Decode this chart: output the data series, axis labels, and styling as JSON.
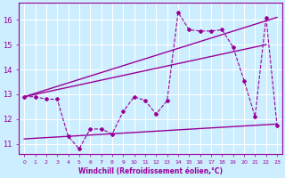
{
  "background_color": "#cceeff",
  "grid_color": "#ffffff",
  "line_color": "#990099",
  "xlabel": "Windchill (Refroidissement éolien,°C)",
  "xlim": [
    -0.5,
    23.5
  ],
  "ylim": [
    10.6,
    16.7
  ],
  "yticks": [
    11,
    12,
    13,
    14,
    15,
    16
  ],
  "xticks": [
    0,
    1,
    2,
    3,
    4,
    5,
    6,
    7,
    8,
    9,
    10,
    11,
    12,
    13,
    14,
    15,
    16,
    17,
    18,
    19,
    20,
    21,
    22,
    23
  ],
  "dashed_x": [
    0,
    1,
    2,
    3,
    4,
    5,
    6,
    7,
    8,
    9,
    10,
    11,
    12,
    13,
    14,
    15,
    16,
    17,
    18,
    19,
    20,
    21,
    22,
    23
  ],
  "dashed_y": [
    12.9,
    12.9,
    12.8,
    12.8,
    11.3,
    10.8,
    11.6,
    11.6,
    11.4,
    12.3,
    12.9,
    12.75,
    12.2,
    12.75,
    16.3,
    15.6,
    15.55,
    15.55,
    15.6,
    14.9,
    13.55,
    12.1,
    16.1,
    11.75
  ],
  "line1_x": [
    0,
    23
  ],
  "line1_y": [
    12.9,
    16.1
  ],
  "line2_x": [
    0,
    22
  ],
  "line2_y": [
    12.9,
    15.0
  ],
  "line3_x": [
    0,
    23
  ],
  "line3_y": [
    11.2,
    11.8
  ]
}
